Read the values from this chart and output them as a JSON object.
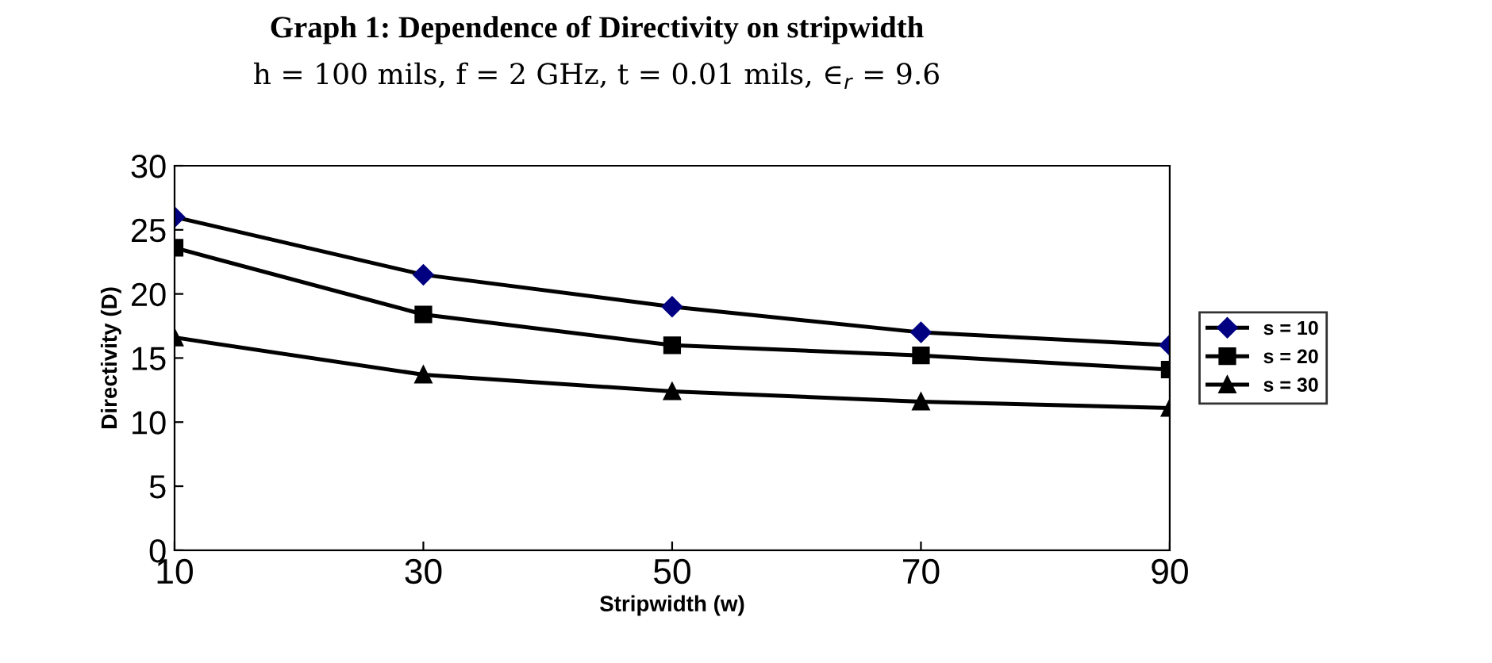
{
  "chart_data": {
    "type": "line",
    "title": "Graph 1: Dependence of Directivity on stripwidth",
    "subtitle": "h = 100 mils, f = 2 GHz, t = 0.01 mils, ∈$_{r}$ = 9.6",
    "xlabel": "Stripwidth (w)",
    "ylabel": "Directivity (D)",
    "x": [
      10,
      30,
      50,
      70,
      90
    ],
    "xlim": [
      10,
      90
    ],
    "xticks": [
      10,
      30,
      50,
      70,
      90
    ],
    "ylim": [
      0,
      30
    ],
    "yticks": [
      0,
      5,
      10,
      15,
      20,
      25,
      30
    ],
    "grid": false,
    "legend": "right",
    "series": [
      {
        "name": "s = 10",
        "color": "#000080",
        "marker": "diamond",
        "values": [
          26.0,
          21.5,
          19.0,
          17.0,
          16.0
        ]
      },
      {
        "name": "s = 20",
        "color": "#000000",
        "marker": "square",
        "values": [
          23.6,
          18.4,
          16.0,
          15.2,
          14.1
        ]
      },
      {
        "name": "s = 30",
        "color": "#000000",
        "marker": "triangle",
        "values": [
          16.6,
          13.7,
          12.4,
          11.6,
          11.1
        ]
      }
    ]
  }
}
